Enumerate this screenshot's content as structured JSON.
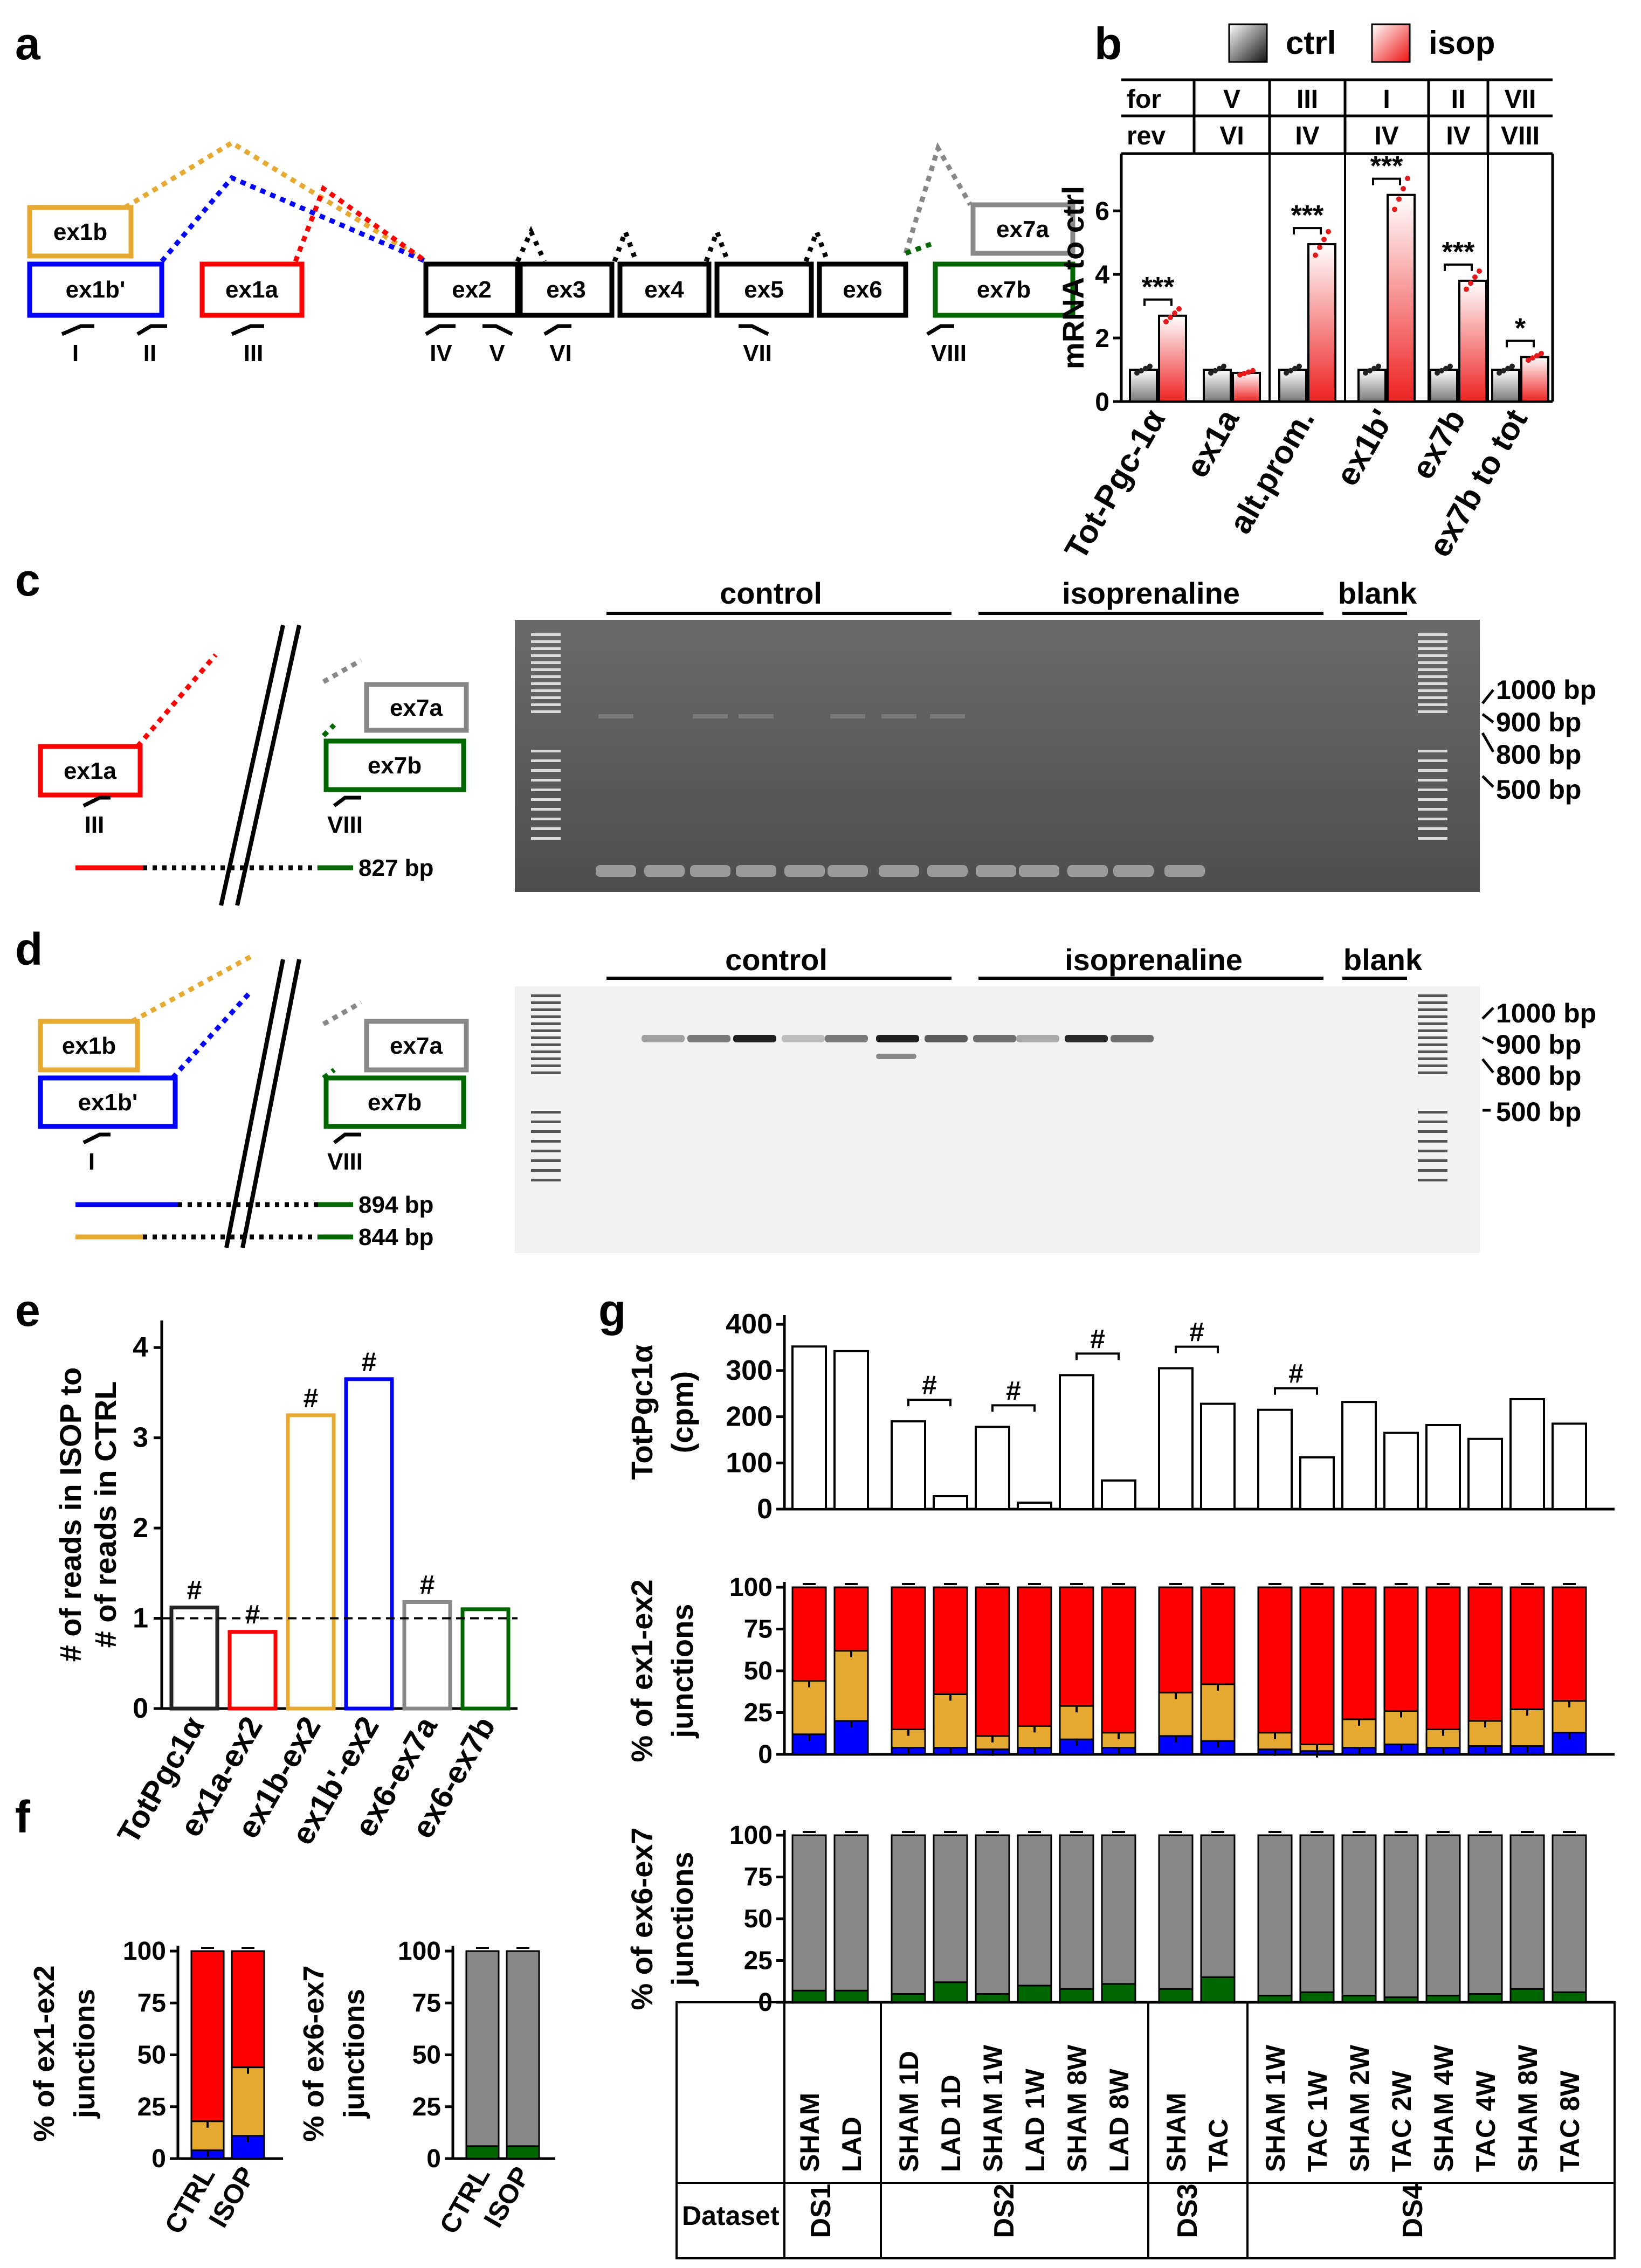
{
  "panel_letters": [
    "a",
    "b",
    "c",
    "d",
    "e",
    "f",
    "g"
  ],
  "colors": {
    "ctrl": "#222222",
    "isop": "#e41a1c",
    "ex1a": "#ff0000",
    "ex1b": "#e6aa33",
    "ex1bp": "#0000ff",
    "ex7a": "#888888",
    "ex7b": "#006600",
    "grey": "#888888"
  },
  "panel_a": {
    "exons": [
      "ex1b",
      "ex1b'",
      "ex1a",
      "ex2",
      "ex3",
      "ex4",
      "ex5",
      "ex6",
      "ex7a",
      "ex7b"
    ],
    "primers": [
      "I",
      "II",
      "III",
      "IV",
      "V",
      "VI",
      "VII",
      "VIII"
    ]
  },
  "chart_data": [
    {
      "panel": "b",
      "type": "bar",
      "legend": [
        "ctrl",
        "isop"
      ],
      "header_rows": {
        "for": [
          "V",
          "III",
          "I",
          "II",
          "VII"
        ],
        "rev": [
          "VI",
          "IV",
          "IV",
          "IV",
          "VIII"
        ]
      },
      "categories": [
        "Tot-Pgc-1α",
        "ex1a",
        "alt.prom.",
        "ex1b'",
        "ex7b",
        "ex7b to tot"
      ],
      "series": [
        {
          "name": "ctrl",
          "values": [
            1,
            1,
            1,
            1,
            1,
            1
          ]
        },
        {
          "name": "isop",
          "values": [
            2.7,
            0.9,
            4.95,
            6.5,
            3.8,
            1.4
          ]
        }
      ],
      "significance": [
        "***",
        "",
        "***",
        "***",
        "***",
        "*"
      ],
      "ylabel": "mRNA to ctrl",
      "ylim": [
        0,
        7.8
      ],
      "yticks": [
        0,
        2,
        4,
        6
      ]
    },
    {
      "panel": "c",
      "type": "gel",
      "groups": [
        "control",
        "isoprenaline",
        "blank"
      ],
      "markers": [
        "1000 bp",
        "900 bp",
        "800 bp",
        "500 bp"
      ],
      "exons": [
        "ex1a",
        "ex7a",
        "ex7b"
      ],
      "primers": [
        "III",
        "VIII"
      ],
      "product": "827 bp"
    },
    {
      "panel": "d",
      "type": "gel",
      "groups": [
        "control",
        "isoprenaline",
        "blank"
      ],
      "markers": [
        "1000 bp",
        "900 bp",
        "800 bp",
        "500 bp"
      ],
      "exons": [
        "ex1b",
        "ex1b'",
        "ex7a",
        "ex7b"
      ],
      "primers": [
        "I",
        "VIII"
      ],
      "products": [
        "894 bp",
        "844 bp"
      ]
    },
    {
      "panel": "e",
      "type": "bar",
      "categories": [
        "TotPgc1α",
        "ex1a-ex2",
        "ex1b-ex2",
        "ex1b'-ex2",
        "ex6-ex7a",
        "ex6-ex7b"
      ],
      "values": [
        1.12,
        0.85,
        3.25,
        3.65,
        1.18,
        1.1
      ],
      "significance": [
        "#",
        "#",
        "#",
        "#",
        "#",
        ""
      ],
      "ylabel": "# of reads in ISOP to # of reads in CTRL",
      "ylabel_lines": [
        "# of reads in ISOP to",
        "# of reads in CTRL"
      ],
      "ylim": [
        0,
        4.3
      ],
      "yticks": [
        0,
        1,
        2,
        3,
        4
      ],
      "reference_line": 1
    },
    {
      "panel": "f-left",
      "type": "bar",
      "stacked": true,
      "categories": [
        "CTRL",
        "ISOP"
      ],
      "series": [
        {
          "name": "ex1b'",
          "values": [
            4,
            11
          ]
        },
        {
          "name": "ex1b",
          "values": [
            14,
            33
          ]
        },
        {
          "name": "ex1a",
          "values": [
            82,
            56
          ]
        }
      ],
      "ylabel": "% of ex1-ex2 junctions",
      "ylabel_lines": [
        "% of ex1-ex2",
        "junctions"
      ],
      "ylim": [
        0,
        100
      ],
      "yticks": [
        0,
        25,
        50,
        75,
        100
      ]
    },
    {
      "panel": "f-right",
      "type": "bar",
      "stacked": true,
      "categories": [
        "CTRL",
        "ISOP"
      ],
      "series": [
        {
          "name": "ex7b",
          "values": [
            6,
            6
          ]
        },
        {
          "name": "ex7a",
          "values": [
            94,
            94
          ]
        }
      ],
      "ylabel": "% of ex6-ex7 junctions",
      "ylabel_lines": [
        "% of ex6-ex7",
        "junctions"
      ],
      "ylim": [
        0,
        100
      ],
      "yticks": [
        0,
        25,
        50,
        75,
        100
      ]
    },
    {
      "panel": "g-top",
      "type": "bar",
      "categories": [
        "SHAM",
        "LAD",
        "SHAM 1D",
        "LAD 1D",
        "SHAM 1W",
        "LAD 1W",
        "SHAM 8W",
        "LAD 8W",
        "SHAM",
        "TAC",
        "SHAM 1W",
        "TAC 1W",
        "SHAM 2W",
        "TAC 2W",
        "SHAM 4W",
        "TAC 4W",
        "SHAM 8W",
        "TAC 8W"
      ],
      "values": [
        352,
        342,
        190,
        28,
        178,
        14,
        290,
        62,
        305,
        228,
        215,
        112,
        232,
        165,
        182,
        152,
        238,
        185
      ],
      "significant_pairs": [
        "SHAM 1D / LAD 1D",
        "SHAM 1W / LAD 1W",
        "SHAM 8W / LAD 8W",
        "SHAM / TAC",
        "SHAM 1W / TAC 1W"
      ],
      "significance_mark": "#",
      "ylabel": "TotPgc1α (cpm)",
      "ylabel_lines": [
        "TotPgc1α",
        "(cpm)"
      ],
      "ylim": [
        0,
        420
      ],
      "yticks": [
        0,
        100,
        200,
        300,
        400
      ]
    },
    {
      "panel": "g-middle",
      "type": "bar",
      "stacked": true,
      "categories": [
        "SHAM",
        "LAD",
        "SHAM 1D",
        "LAD 1D",
        "SHAM 1W",
        "LAD 1W",
        "SHAM 8W",
        "LAD 8W",
        "SHAM",
        "TAC",
        "SHAM 1W",
        "TAC 1W",
        "SHAM 2W",
        "TAC 2W",
        "SHAM 4W",
        "TAC 4W",
        "SHAM 8W",
        "TAC 8W"
      ],
      "series": [
        {
          "name": "ex1b'",
          "values": [
            12,
            20,
            4,
            4,
            3,
            4,
            9,
            4,
            11,
            8,
            3,
            2,
            4,
            6,
            4,
            5,
            5,
            13
          ]
        },
        {
          "name": "ex1b",
          "values": [
            32,
            42,
            11,
            32,
            8,
            13,
            20,
            9,
            26,
            34,
            10,
            4,
            17,
            20,
            11,
            15,
            22,
            19
          ]
        },
        {
          "name": "ex1a",
          "values": [
            56,
            38,
            85,
            64,
            89,
            83,
            71,
            87,
            63,
            58,
            87,
            94,
            79,
            74,
            85,
            80,
            73,
            68
          ]
        }
      ],
      "ylabel": "% of ex1-ex2 junctions",
      "ylabel_lines": [
        "% of ex1-ex2",
        "junctions"
      ],
      "ylim": [
        0,
        100
      ],
      "yticks": [
        0,
        25,
        50,
        75,
        100
      ]
    },
    {
      "panel": "g-bottom",
      "type": "bar",
      "stacked": true,
      "categories": [
        "SHAM",
        "LAD",
        "SHAM 1D",
        "LAD 1D",
        "SHAM 1W",
        "LAD 1W",
        "SHAM 8W",
        "LAD 8W",
        "SHAM",
        "TAC",
        "SHAM 1W",
        "TAC 1W",
        "SHAM 2W",
        "TAC 2W",
        "SHAM 4W",
        "TAC 4W",
        "SHAM 8W",
        "TAC 8W"
      ],
      "series": [
        {
          "name": "ex7b",
          "values": [
            7,
            7,
            5,
            12,
            5,
            10,
            8,
            11,
            8,
            15,
            4,
            6,
            4,
            3,
            4,
            5,
            8,
            6
          ]
        },
        {
          "name": "ex7a",
          "values": [
            93,
            93,
            95,
            88,
            95,
            90,
            92,
            89,
            92,
            85,
            96,
            94,
            96,
            97,
            96,
            95,
            92,
            94
          ]
        }
      ],
      "ylabel": "% of ex6-ex7 junctions",
      "ylabel_lines": [
        "% of ex6-ex7",
        "junctions"
      ],
      "ylim": [
        0,
        100
      ],
      "yticks": [
        0,
        25,
        50,
        75,
        100
      ]
    }
  ],
  "g_table": {
    "dataset_label": "Dataset",
    "datasets": [
      {
        "name": "DS1",
        "count": 2
      },
      {
        "name": "DS2",
        "count": 6
      },
      {
        "name": "DS3",
        "count": 2
      },
      {
        "name": "DS4",
        "count": 8
      }
    ]
  }
}
